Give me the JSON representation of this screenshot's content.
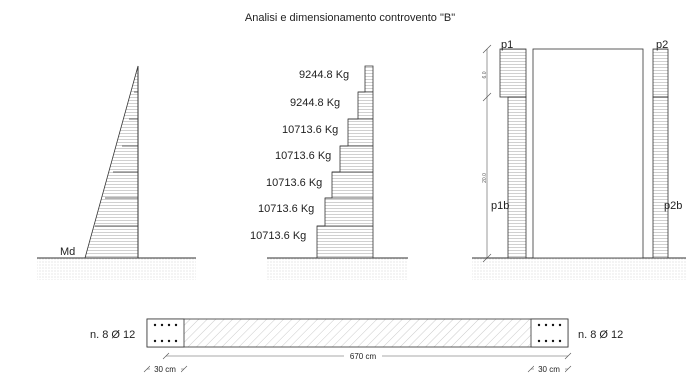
{
  "title": "Analisi e dimensionamento controvento \"B\"",
  "moment_diagram": {
    "label": "Md"
  },
  "loads": [
    "9244.8 Kg",
    "9244.8 Kg",
    "10713.6 Kg",
    "10713.6 Kg",
    "10713.6 Kg",
    "10713.6 Kg",
    "10713.6 Kg"
  ],
  "bracing": {
    "left_top_label": "p1",
    "right_top_label": "p2",
    "left_bottom_label": "p1b",
    "right_bottom_label": "p2b",
    "dim_upper": "6.0",
    "dim_lower": "20.0"
  },
  "section": {
    "left_rebar": "n. 8 Ø 12",
    "right_rebar": "n. 8 Ø 12",
    "total_length": "670 cm",
    "left_end": "30 cm",
    "right_end": "30 cm"
  },
  "colors": {
    "line": "#333333",
    "hatch": "#9a9a9a",
    "ground": "#999999"
  }
}
